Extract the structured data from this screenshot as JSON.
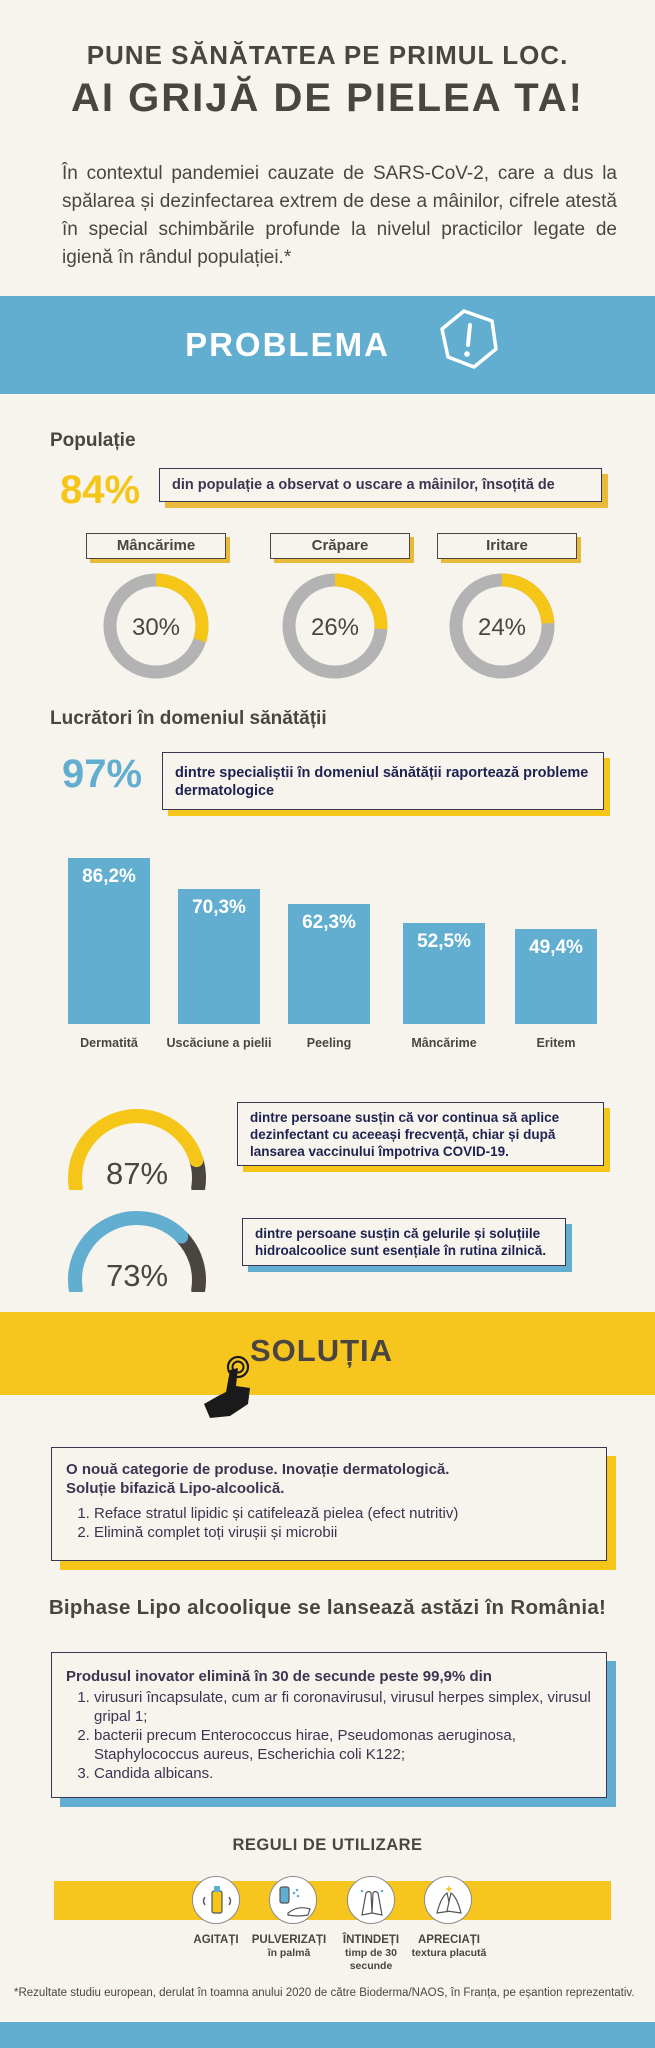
{
  "header": {
    "line1": "PUNE SĂNĂTATEA PE PRIMUL LOC.",
    "line2": "AI GRIJĂ DE PIELEA TA!",
    "intro": "În contextul pandemiei cauzate de SARS-CoV-2, care a dus la spălarea și dezinfectarea extrem de dese a mâinilor, cifrele atestă în special schimbările profunde la nivelul practicilor legate de igienă în rândul populației.*"
  },
  "problem_band": {
    "title": "PROBLEMA",
    "icon": "warning-exclamation-icon"
  },
  "population": {
    "title": "Populație",
    "pct": "84%",
    "text": "din populație a observat o uscare a mâinilor, însoțită de",
    "donuts": [
      {
        "label": "Mâncărime",
        "value_text": "30%",
        "value": 30
      },
      {
        "label": "Crăpare",
        "value_text": "26%",
        "value": 26
      },
      {
        "label": "Iritare",
        "value_text": "24%",
        "value": 24
      }
    ]
  },
  "health_workers": {
    "title": "Lucrători în domeniul sănătății",
    "pct": "97%",
    "text": "dintre specialiștii în domeniul sănătății raportează probleme dermatologice"
  },
  "chart_data": {
    "type": "bar",
    "categories": [
      "Dermatită",
      "Uscăciune a pielii",
      "Peeling",
      "Mâncărime",
      "Eritem"
    ],
    "values": [
      86.2,
      70.3,
      62.3,
      52.5,
      49.4
    ],
    "value_labels": [
      "86,2%",
      "70,3%",
      "62,3%",
      "52,5%",
      "49,4%"
    ],
    "ylim": [
      0,
      100
    ]
  },
  "gauges": [
    {
      "value_text": "87%",
      "value": 87,
      "color": "#f5c518",
      "text": "dintre persoane susțin că vor continua să aplice dezinfectant cu aceeași frecvență, chiar și după lansarea vaccinului împotriva COVID-19."
    },
    {
      "value_text": "73%",
      "value": 73,
      "color": "#62aed0",
      "text": "dintre persoane susțin că gelurile și soluțiile hidroalcoolice sunt esențiale în rutina zilnică."
    }
  ],
  "solution_band": {
    "title": "SOLUȚIA",
    "icon": "pointing-hand-icon"
  },
  "solution_box": {
    "title_line1": "O nouă categorie de produse. Inovație dermatologică.",
    "title_line2": "Soluție bifazică Lipo-alcoolică.",
    "items": [
      "Reface stratul lipidic și catifelează pielea (efect nutritiv)",
      "Elimină complet toți virușii și microbii"
    ]
  },
  "launch": {
    "text": "Biphase Lipo alcoolique se lansează astăzi în România!"
  },
  "product_box": {
    "title": "Produsul inovator elimină în 30 de secunde peste 99,9% din",
    "items": [
      "virusuri încapsulate, cum ar fi coronavirusul, virusul herpes simplex, virusul gripal 1;",
      "bacterii precum Enterococcus hirae, Pseudomonas aeruginosa, Staphylococcus aureus, Escherichia coli K122;",
      "Candida albicans."
    ]
  },
  "rules": {
    "title": "REGULI DE UTILIZARE",
    "steps": [
      {
        "label": "AGITAȚI",
        "sub": "",
        "icon": "shake-bottle-icon"
      },
      {
        "label": "PULVERIZAȚI",
        "sub": "în palmă",
        "icon": "spray-hand-icon"
      },
      {
        "label": "ÎNTINDEȚI",
        "sub": "timp de 30 secunde",
        "icon": "rub-hands-icon"
      },
      {
        "label": "APRECIAȚI",
        "sub": "textura placută",
        "icon": "hands-sparkle-icon"
      }
    ]
  },
  "footnote": "*Rezultate studiu european, derulat în toamna anului 2020 de către Bioderma/NAOS, în Franța, pe eșantion reprezentativ.",
  "colors": {
    "blue": "#62aed0",
    "yellow": "#f5c518",
    "gray": "#b3b3b3",
    "dark": "#4a4540"
  }
}
